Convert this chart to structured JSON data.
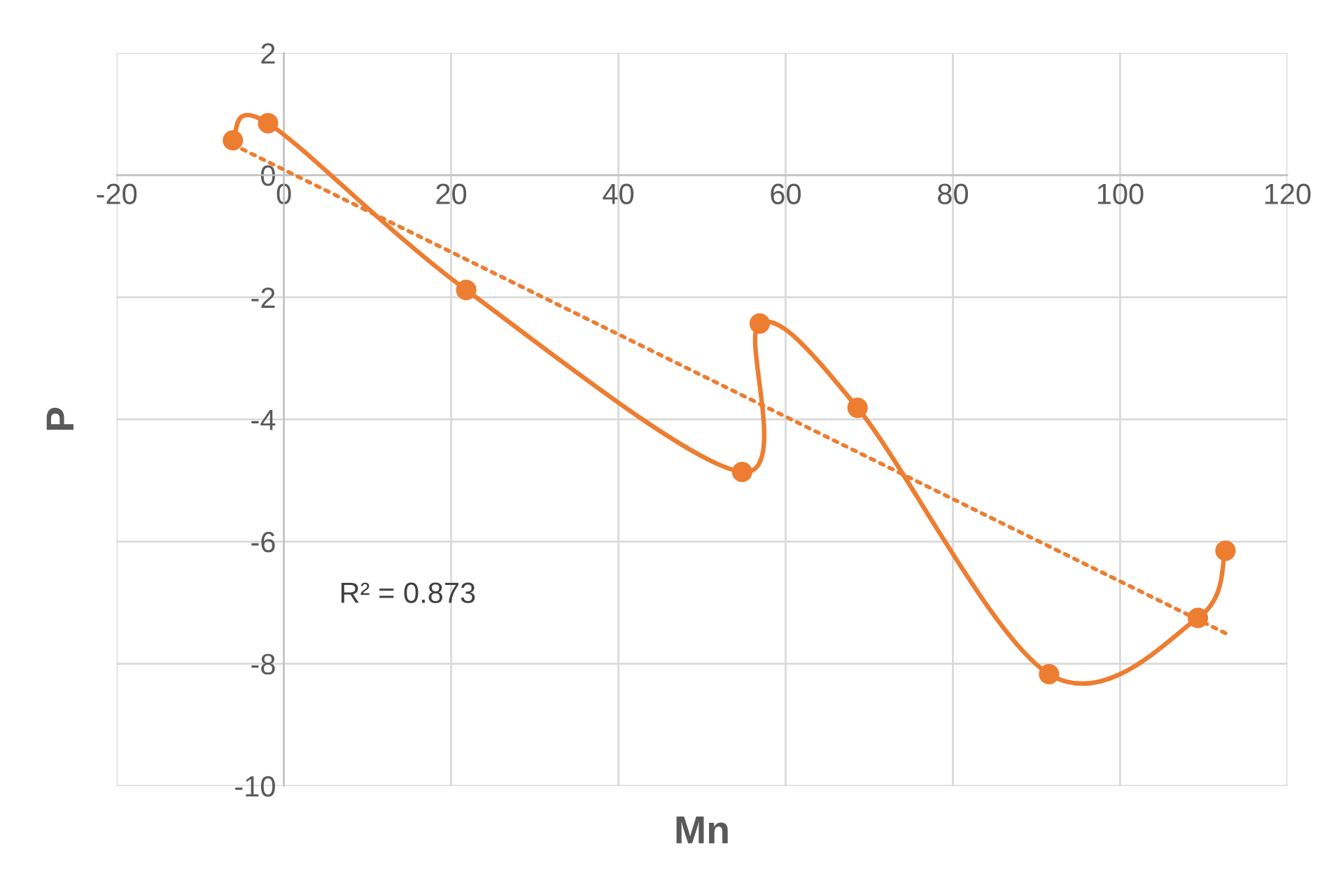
{
  "chart_data": {
    "type": "line",
    "xlabel": "Mn",
    "ylabel": "P",
    "xlim": [
      -20,
      120
    ],
    "xticks": [
      -20,
      0,
      20,
      40,
      60,
      80,
      100,
      120
    ],
    "ylim": [
      -10,
      2
    ],
    "yticks": [
      -10,
      -8,
      -6,
      -4,
      -2,
      0,
      2
    ],
    "grid": true,
    "legend": false,
    "series": [
      {
        "color": "#ed7d31",
        "marker": "circle",
        "line_style": "solid",
        "x": [
          -6.1,
          -1.9,
          21.8,
          54.8,
          56.9,
          68.6,
          91.5,
          109.3,
          112.6
        ],
        "values": [
          0.57,
          0.85,
          -1.88,
          -4.86,
          -2.43,
          -3.81,
          -8.17,
          -7.25,
          -6.15
        ]
      },
      {
        "color": "#ed7d31",
        "marker": "none",
        "line_style": "dotted",
        "x": [
          -6.1,
          112.6
        ],
        "values": [
          0.5,
          -7.5
        ]
      }
    ],
    "annotations": [
      "R² = 0.873"
    ]
  }
}
